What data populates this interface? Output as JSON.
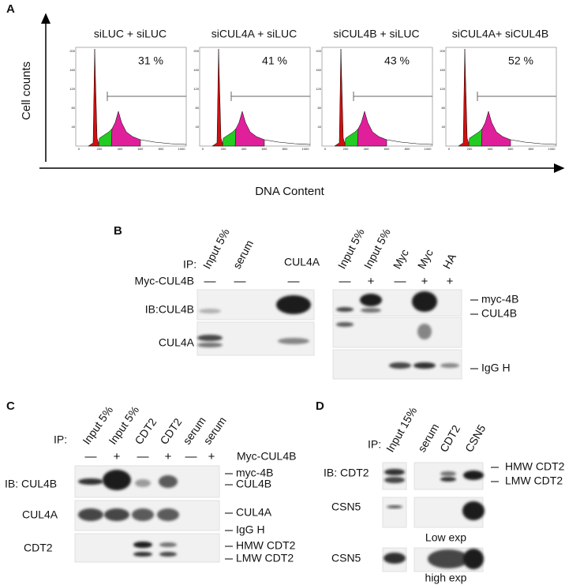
{
  "panel_a": {
    "label": "A",
    "y_axis_label": "Cell counts",
    "x_axis_label": "DNA Content",
    "histograms": [
      {
        "title": "siLUC + siLUC",
        "percent": "31 %"
      },
      {
        "title": "siCUL4A + siLUC",
        "percent": "41 %"
      },
      {
        "title": "siCUL4B + siLUC",
        "percent": "43 %"
      },
      {
        "title": "siCUL4A+ siCUL4B",
        "percent": "52 %"
      }
    ],
    "x_ticks": [
      "0",
      "200",
      "400",
      "600",
      "800",
      "1000"
    ],
    "y_ticks": [
      "40",
      "80",
      "120",
      "160",
      "200"
    ]
  },
  "panel_b": {
    "label": "B",
    "ip_label": "IP:",
    "lanes": [
      "Input 5%",
      "serum",
      "CUL4A",
      "Input 5%",
      "Input 5%",
      "Myc",
      "Myc",
      "HA"
    ],
    "construct": "Myc-CUL4B",
    "signs": [
      "—",
      "—",
      "—",
      "—",
      "+",
      "—",
      "+",
      "+"
    ],
    "rows": [
      "IB:CUL4B",
      "CUL4A"
    ],
    "band_labels": [
      "myc-4B",
      "CUL4B",
      "IgG H"
    ]
  },
  "panel_c": {
    "label": "C",
    "ip_label": "IP:",
    "lanes": [
      "Input 5%",
      "Input 5%",
      "CDT2",
      "CDT2",
      "serum",
      "serum"
    ],
    "construct": "Myc-CUL4B",
    "signs": [
      "—",
      "+",
      "—",
      "+",
      "—",
      "+"
    ],
    "rows": [
      "IB: CUL4B",
      "CUL4A",
      "CDT2"
    ],
    "band_labels": [
      "myc-4B",
      "CUL4B",
      "CUL4A",
      "IgG H",
      "HMW CDT2",
      "LMW CDT2"
    ]
  },
  "panel_d": {
    "label": "D",
    "ip_label": "IP:",
    "lanes": [
      "Input 15%",
      "serum",
      "CDT2",
      "CSN5"
    ],
    "rows": [
      "IB: CDT2",
      "CSN5",
      "CSN5"
    ],
    "band_labels": [
      "HMW CDT2",
      "LMW CDT2"
    ],
    "exposures": [
      "Low exp",
      "high exp"
    ]
  }
}
